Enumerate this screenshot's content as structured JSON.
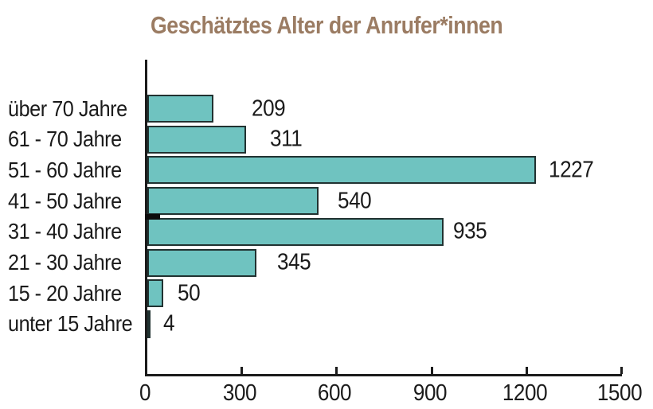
{
  "title": "Geschätztes Alter der Anrufer*innen",
  "colors": {
    "bar_fill": "#6fc3c0",
    "bar_border": "#213231",
    "axis": "#1b1b1b",
    "title_text": "#9b7c63",
    "label_text": "#1b1b1b",
    "background": "#ffffff"
  },
  "chart_data": {
    "type": "bar",
    "orientation": "horizontal",
    "title": "Geschätztes Alter der Anrufer*innen",
    "categories": [
      "über 70 Jahre",
      "61 - 70 Jahre",
      "51 - 60 Jahre",
      "41 - 50 Jahre",
      "31 - 40 Jahre",
      "21 - 30 Jahre",
      "15 - 20 Jahre",
      "unter 15 Jahre"
    ],
    "values": [
      209,
      311,
      1227,
      540,
      935,
      345,
      50,
      4
    ],
    "value_labels": [
      "209",
      "311",
      "1227",
      "540",
      "935",
      "345",
      "50",
      "4"
    ],
    "xlabel": "",
    "ylabel": "",
    "xlim": [
      0,
      1500
    ],
    "xticks": [
      0,
      300,
      600,
      900,
      1200,
      1500
    ],
    "grid": false,
    "legend": null
  }
}
